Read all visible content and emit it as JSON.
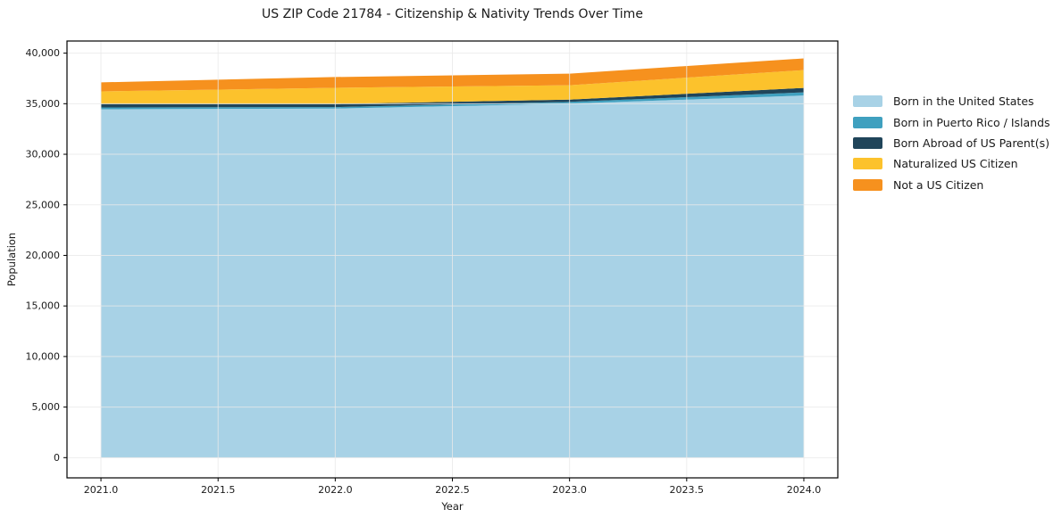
{
  "chart_data": {
    "type": "area",
    "stacked": true,
    "title": "US ZIP Code 21784 - Citizenship & Nativity Trends Over Time",
    "xlabel": "Year",
    "ylabel": "Population",
    "x": [
      2021,
      2022,
      2023,
      2024
    ],
    "series": [
      {
        "name": "Born in the United States",
        "color": "#A8D2E6",
        "values": [
          34450,
          34530,
          35000,
          35810
        ]
      },
      {
        "name": "Born in Puerto Rico / Islands",
        "color": "#3FA0BF",
        "values": [
          180,
          140,
          180,
          310
        ]
      },
      {
        "name": "Born Abroad of US Parent(s)",
        "color": "#20455A",
        "values": [
          350,
          310,
          230,
          440
        ]
      },
      {
        "name": "Naturalized US Citizen",
        "color": "#FCC22C",
        "values": [
          1240,
          1590,
          1420,
          1770
        ]
      },
      {
        "name": "Not a US Citizen",
        "color": "#F6911E",
        "values": [
          890,
          1070,
          1140,
          1150
        ]
      }
    ],
    "xticks": {
      "values": [
        2021.0,
        2021.5,
        2022.0,
        2022.5,
        2023.0,
        2023.5,
        2024.0
      ],
      "labels": [
        "2021.0",
        "2021.5",
        "2022.0",
        "2022.5",
        "2023.0",
        "2023.5",
        "2024.0"
      ]
    },
    "yticks": {
      "values": [
        0,
        5000,
        10000,
        15000,
        20000,
        25000,
        30000,
        35000,
        40000
      ],
      "labels": [
        "0",
        "5,000",
        "10,000",
        "15,000",
        "20,000",
        "25,000",
        "30,000",
        "35,000",
        "40,000"
      ]
    },
    "xlim": [
      2020.855,
      2024.145
    ],
    "ylim": [
      -2000,
      41200
    ],
    "grid": true,
    "legend_position": "right",
    "colors": {
      "spine": "#000000",
      "grid": "#e9e9e9",
      "text": "#1a1a1a",
      "background": "#ffffff"
    }
  }
}
